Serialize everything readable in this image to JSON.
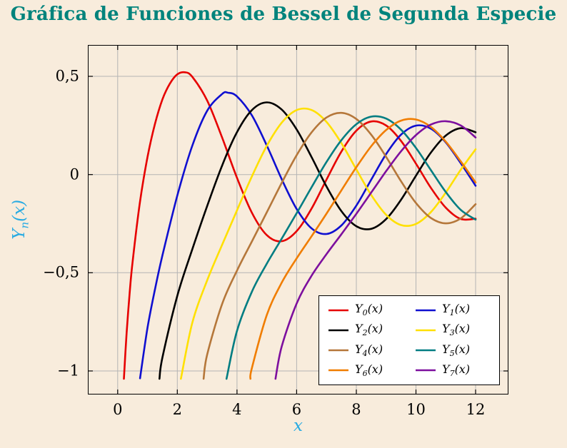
{
  "colors": {
    "background": "#f8ecdc",
    "title": "#00837c",
    "axis_label": "#29abe2",
    "grid": "#b4b4b4",
    "axis_border": "#000000",
    "tick_label": "#000000",
    "legend_background": "#ffffff",
    "legend_border": "#000000"
  },
  "chart_data": {
    "type": "line",
    "title": "Gráfica de Funciones de Bessel de Segunda Especie",
    "xlabel": "x",
    "ylabel": "Y_n(x)",
    "ylabel_parts": {
      "base": "Y",
      "sub": "n",
      "rest": "(x)"
    },
    "xlim": [
      -1.0,
      13.1
    ],
    "ylim": [
      -1.12,
      0.66
    ],
    "x_ticks": [
      0,
      2,
      4,
      6,
      8,
      10,
      12
    ],
    "x_tick_labels": [
      "0",
      "2",
      "4",
      "6",
      "8",
      "10",
      "12"
    ],
    "y_ticks": [
      0.5,
      0,
      -0.5,
      -1
    ],
    "y_tick_labels": [
      "0,5",
      "0",
      "−0,5",
      "−1"
    ],
    "grid": "major",
    "legend_position": "south-east",
    "legend_columns": 2,
    "series": [
      {
        "name": "Y_0(x)",
        "color": "#e60000",
        "points": [
          [
            0.21,
            -1.04
          ],
          [
            0.25,
            -0.932
          ],
          [
            0.3,
            -0.8073
          ],
          [
            0.4,
            -0.606
          ],
          [
            0.5,
            -0.4445
          ],
          [
            0.75,
            -0.137
          ],
          [
            1,
            0.0883
          ],
          [
            1.25,
            0.258
          ],
          [
            1.5,
            0.3824
          ],
          [
            1.75,
            0.463
          ],
          [
            2,
            0.5104
          ],
          [
            2.25,
            0.5207
          ],
          [
            2.5,
            0.4981
          ],
          [
            3,
            0.3769
          ],
          [
            3.5,
            0.189
          ],
          [
            4,
            -0.0169
          ],
          [
            4.5,
            -0.1947
          ],
          [
            5,
            -0.3085
          ],
          [
            5.5,
            -0.3395
          ],
          [
            6,
            -0.2882
          ],
          [
            6.5,
            -0.1732
          ],
          [
            7,
            -0.0259
          ],
          [
            7.5,
            0.1173
          ],
          [
            8,
            0.2235
          ],
          [
            8.5,
            0.2702
          ],
          [
            9,
            0.2499
          ],
          [
            9.5,
            0.1712
          ],
          [
            10,
            0.0557
          ],
          [
            10.5,
            -0.0675
          ],
          [
            11,
            -0.1688
          ],
          [
            11.5,
            -0.226
          ],
          [
            12,
            -0.2248
          ]
        ]
      },
      {
        "name": "Y_1(x)",
        "color": "#0f0fd0",
        "points": [
          [
            0.75,
            -1.0375
          ],
          [
            1,
            -0.7812
          ],
          [
            1.25,
            -0.585
          ],
          [
            1.5,
            -0.4123
          ],
          [
            2,
            -0.107
          ],
          [
            2.5,
            0.1459
          ],
          [
            3,
            0.3247
          ],
          [
            3.5,
            0.4102
          ],
          [
            3.7,
            0.4167
          ],
          [
            4,
            0.3979
          ],
          [
            4.5,
            0.301
          ],
          [
            5,
            0.1479
          ],
          [
            5.5,
            -0.0238
          ],
          [
            6,
            -0.175
          ],
          [
            6.5,
            -0.2741
          ],
          [
            7,
            -0.3027
          ],
          [
            7.5,
            -0.2591
          ],
          [
            8,
            -0.1581
          ],
          [
            8.5,
            -0.0262
          ],
          [
            9,
            0.1043
          ],
          [
            9.5,
            0.2032
          ],
          [
            10,
            0.249
          ],
          [
            10.5,
            0.2337
          ],
          [
            11,
            0.1637
          ],
          [
            11.5,
            0.0579
          ],
          [
            12,
            -0.0571
          ]
        ]
      },
      {
        "name": "Y_2(x)",
        "color": "#000000",
        "points": [
          [
            1.4,
            -1.04
          ],
          [
            1.5,
            -0.9321
          ],
          [
            2,
            -0.6174
          ],
          [
            2.5,
            -0.3814
          ],
          [
            3,
            -0.1604
          ],
          [
            3.5,
            0.0454
          ],
          [
            4,
            0.2159
          ],
          [
            4.5,
            0.3285
          ],
          [
            5,
            0.3677
          ],
          [
            5.5,
            0.3308
          ],
          [
            6,
            0.2299
          ],
          [
            6.5,
            0.0889
          ],
          [
            7,
            -0.0606
          ],
          [
            7.5,
            -0.1864
          ],
          [
            8,
            -0.263
          ],
          [
            8.5,
            -0.2764
          ],
          [
            9,
            -0.2267
          ],
          [
            9.5,
            -0.1284
          ],
          [
            10,
            -0.0059
          ],
          [
            10.5,
            0.112
          ],
          [
            11,
            0.1986
          ],
          [
            11.5,
            0.2361
          ],
          [
            12,
            0.2153
          ]
        ]
      },
      {
        "name": "Y_3(x)",
        "color": "#ffe000",
        "points": [
          [
            2.12,
            -1.04
          ],
          [
            2.5,
            -0.7561
          ],
          [
            3,
            -0.5386
          ],
          [
            3.5,
            -0.3583
          ],
          [
            4,
            -0.182
          ],
          [
            4.5,
            -0.009
          ],
          [
            5,
            0.1463
          ],
          [
            5.5,
            0.2644
          ],
          [
            6,
            0.3283
          ],
          [
            6.5,
            0.3288
          ],
          [
            7,
            0.2681
          ],
          [
            7.5,
            0.1597
          ],
          [
            8,
            0.0266
          ],
          [
            8.5,
            -0.1039
          ],
          [
            9,
            -0.2051
          ],
          [
            9.5,
            -0.2573
          ],
          [
            10,
            -0.2514
          ],
          [
            10.5,
            -0.191
          ],
          [
            11,
            -0.0915
          ],
          [
            11.5,
            0.0242
          ],
          [
            12,
            0.1289
          ]
        ]
      },
      {
        "name": "Y_4(x)",
        "color": "#b5773a",
        "points": [
          [
            2.88,
            -1.04
          ],
          [
            3,
            -0.9168
          ],
          [
            3.5,
            -0.6596
          ],
          [
            4,
            -0.4889
          ],
          [
            4.5,
            -0.3405
          ],
          [
            5,
            -0.1921
          ],
          [
            5.5,
            -0.0424
          ],
          [
            6,
            0.0984
          ],
          [
            6.5,
            0.2146
          ],
          [
            7,
            0.2904
          ],
          [
            7.5,
            0.3142
          ],
          [
            8,
            0.283
          ],
          [
            8.5,
            0.2031
          ],
          [
            9,
            0.09
          ],
          [
            9.5,
            -0.0341
          ],
          [
            10,
            -0.1449
          ],
          [
            10.5,
            -0.2211
          ],
          [
            11,
            -0.2485
          ],
          [
            11.5,
            -0.2235
          ],
          [
            12,
            -0.1508
          ]
        ]
      },
      {
        "name": "Y_5(x)",
        "color": "#007d82",
        "points": [
          [
            3.65,
            -1.04
          ],
          [
            4,
            -0.7958
          ],
          [
            4.5,
            -0.5963
          ],
          [
            5,
            -0.4537
          ],
          [
            5.5,
            -0.3261
          ],
          [
            6,
            -0.1971
          ],
          [
            6.5,
            -0.0647
          ],
          [
            7,
            0.0638
          ],
          [
            7.5,
            0.1754
          ],
          [
            8,
            0.2564
          ],
          [
            8.5,
            0.2951
          ],
          [
            9,
            0.2851
          ],
          [
            9.5,
            0.2286
          ],
          [
            10,
            0.1355
          ],
          [
            10.5,
            0.0225
          ],
          [
            11,
            -0.0892
          ],
          [
            11.5,
            -0.1797
          ],
          [
            12,
            -0.2294
          ]
        ]
      },
      {
        "name": "Y_6(x)",
        "color": "#f07d00",
        "points": [
          [
            4.45,
            -1.04
          ],
          [
            4.5,
            -0.9846
          ],
          [
            5,
            -0.7153
          ],
          [
            5.5,
            -0.5505
          ],
          [
            6,
            -0.4269
          ],
          [
            6.5,
            -0.3141
          ],
          [
            7,
            -0.1993
          ],
          [
            7.5,
            -0.0803
          ],
          [
            8,
            0.0375
          ],
          [
            8.5,
            0.1441
          ],
          [
            9,
            0.2268
          ],
          [
            9.5,
            0.2747
          ],
          [
            10,
            0.2804
          ],
          [
            10.5,
            0.2425
          ],
          [
            11,
            0.1674
          ],
          [
            11.5,
            0.0672
          ],
          [
            12,
            -0.0404
          ]
        ]
      },
      {
        "name": "Y_7(x)",
        "color": "#7d0f9e",
        "points": [
          [
            5.29,
            -1.04
          ],
          [
            5.5,
            -0.875
          ],
          [
            6,
            -0.6567
          ],
          [
            6.5,
            -0.5152
          ],
          [
            7,
            -0.4055
          ],
          [
            7.5,
            -0.3039
          ],
          [
            8,
            -0.2001
          ],
          [
            8.5,
            -0.0917
          ],
          [
            9,
            0.0173
          ],
          [
            9.5,
            0.1184
          ],
          [
            10,
            0.201
          ],
          [
            10.5,
            0.2546
          ],
          [
            11,
            0.2718
          ],
          [
            11.5,
            0.2498
          ],
          [
            12,
            0.189
          ]
        ]
      }
    ]
  }
}
